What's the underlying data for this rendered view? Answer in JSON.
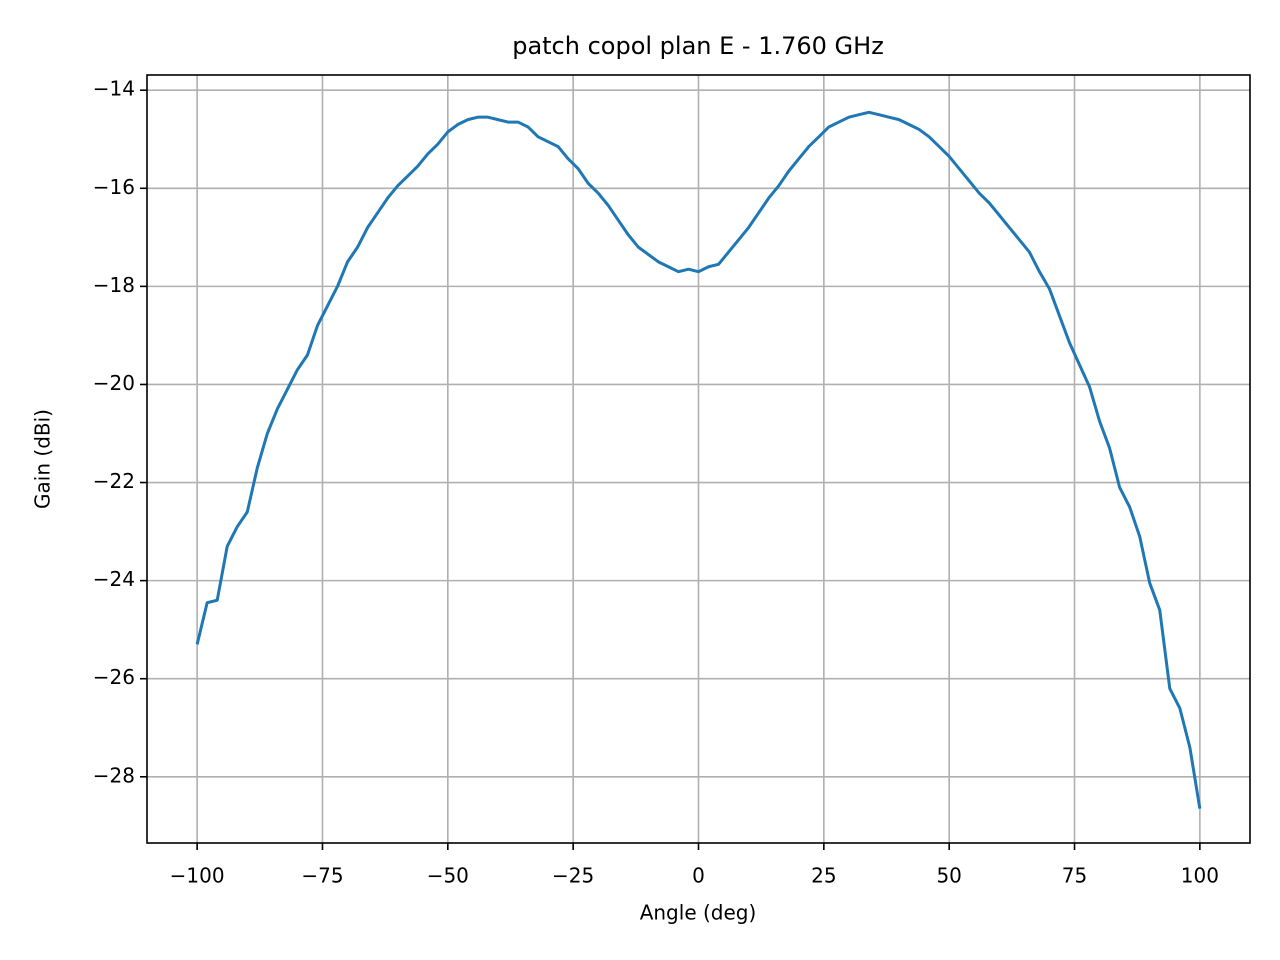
{
  "chart_data": {
    "type": "line",
    "title": "patch copol plan E - 1.760 GHz",
    "x_label": "Angle (deg)",
    "y_label": "Gain (dBi)",
    "color": "#1f77b4",
    "grid": true,
    "xlim": [
      -110,
      110
    ],
    "ylim": [
      -29.35,
      -13.69
    ],
    "xticks": [
      {
        "value": -100,
        "label": "−100"
      },
      {
        "value": -75,
        "label": "−75"
      },
      {
        "value": -50,
        "label": "−50"
      },
      {
        "value": -25,
        "label": "−25"
      },
      0,
      25,
      50,
      75,
      100
    ],
    "yticks": [
      {
        "value": -14,
        "label": "−14"
      },
      {
        "value": -16,
        "label": "−16"
      },
      {
        "value": -18,
        "label": "−18"
      },
      {
        "value": -20,
        "label": "−20"
      },
      {
        "value": -22,
        "label": "−22"
      },
      {
        "value": -24,
        "label": "−24"
      },
      {
        "value": -26,
        "label": "−26"
      },
      {
        "value": -28,
        "label": "−28"
      }
    ],
    "x": [
      -100,
      -98,
      -96,
      -94,
      -92,
      -90,
      -88,
      -86,
      -84,
      -82,
      -80,
      -78,
      -76,
      -74,
      -72,
      -70,
      -68,
      -66,
      -64,
      -62,
      -60,
      -58,
      -56,
      -54,
      -52,
      -50,
      -48,
      -46,
      -44,
      -42,
      -40,
      -38,
      -36,
      -34,
      -32,
      -30,
      -28,
      -26,
      -24,
      -22,
      -20,
      -18,
      -16,
      -14,
      -12,
      -10,
      -8,
      -6,
      -4,
      -2,
      0,
      2,
      4,
      6,
      8,
      10,
      12,
      14,
      16,
      18,
      20,
      22,
      24,
      26,
      28,
      30,
      32,
      34,
      36,
      38,
      40,
      42,
      44,
      46,
      48,
      50,
      52,
      54,
      56,
      58,
      60,
      62,
      64,
      66,
      68,
      70,
      72,
      74,
      76,
      78,
      80,
      82,
      84,
      86,
      88,
      90,
      92,
      94,
      96,
      98,
      100
    ],
    "values": [
      -25.3,
      -24.45,
      -24.4,
      -23.3,
      -22.9,
      -22.6,
      -21.7,
      -21.0,
      -20.5,
      -20.1,
      -19.7,
      -19.4,
      -18.8,
      -18.4,
      -18.0,
      -17.5,
      -17.2,
      -16.8,
      -16.5,
      -16.2,
      -15.95,
      -15.75,
      -15.55,
      -15.3,
      -15.1,
      -14.85,
      -14.7,
      -14.6,
      -14.55,
      -14.55,
      -14.6,
      -14.65,
      -14.65,
      -14.75,
      -14.95,
      -15.05,
      -15.15,
      -15.4,
      -15.6,
      -15.9,
      -16.1,
      -16.35,
      -16.65,
      -16.95,
      -17.2,
      -17.35,
      -17.5,
      -17.6,
      -17.7,
      -17.65,
      -17.7,
      -17.6,
      -17.55,
      -17.3,
      -17.05,
      -16.8,
      -16.5,
      -16.2,
      -15.95,
      -15.65,
      -15.4,
      -15.15,
      -14.95,
      -14.75,
      -14.65,
      -14.55,
      -14.5,
      -14.45,
      -14.5,
      -14.55,
      -14.6,
      -14.7,
      -14.8,
      -14.95,
      -15.15,
      -15.35,
      -15.6,
      -15.85,
      -16.1,
      -16.3,
      -16.55,
      -16.8,
      -17.05,
      -17.3,
      -17.7,
      -18.05,
      -18.6,
      -19.15,
      -19.6,
      -20.05,
      -20.75,
      -21.3,
      -22.1,
      -22.5,
      -23.1,
      -24.05,
      -24.6,
      -26.2,
      -26.6,
      -27.4,
      -28.65
    ]
  }
}
